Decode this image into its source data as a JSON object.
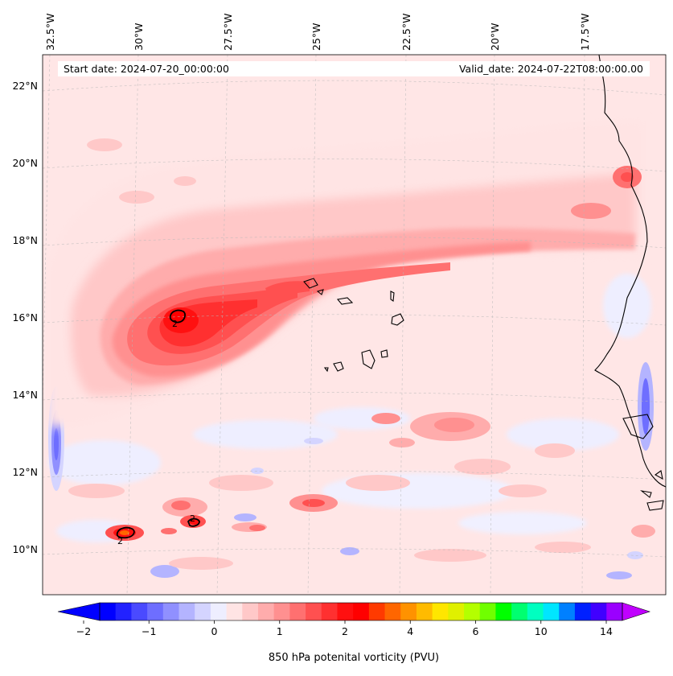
{
  "map": {
    "lon_labels": [
      "32.5°W",
      "30°W",
      "27.5°W",
      "25°W",
      "22.5°W",
      "20°W",
      "17.5°W"
    ],
    "lat_labels": [
      "22°N",
      "20°N",
      "18°N",
      "16°N",
      "14°N",
      "12°N",
      "10°N"
    ],
    "start_date_text": "Start date: 2024-07-20_00:00:00",
    "valid_date_text": "Valid_date: 2024-07-22T08:00:00.00",
    "contour_labels": [
      "2",
      "2",
      "2"
    ]
  },
  "colorbar": {
    "tick_labels": [
      "−2",
      "−1",
      "0",
      "1",
      "2",
      "4",
      "6",
      "10",
      "14"
    ],
    "label": "850 hPa potenital vorticity (PVU)",
    "colors": [
      "#0000ff",
      "#2222ff",
      "#4a4aff",
      "#6e6eff",
      "#9090ff",
      "#b4b4ff",
      "#d4d4ff",
      "#eeeeff",
      "#ffe4e4",
      "#ffc8c8",
      "#ffacac",
      "#ff9090",
      "#ff7070",
      "#ff5050",
      "#ff3030",
      "#ff1010",
      "#ff0000",
      "#ff3a00",
      "#ff6600",
      "#ff9200",
      "#ffbb00",
      "#ffe600",
      "#e0f000",
      "#b4ff00",
      "#70ff00",
      "#00ff00",
      "#00ff70",
      "#00ffc0",
      "#00e6ff",
      "#0080ff",
      "#0020ff",
      "#4000ff",
      "#9a00ff"
    ],
    "under_color": "#0000ff",
    "over_color": "#c000ff"
  }
}
